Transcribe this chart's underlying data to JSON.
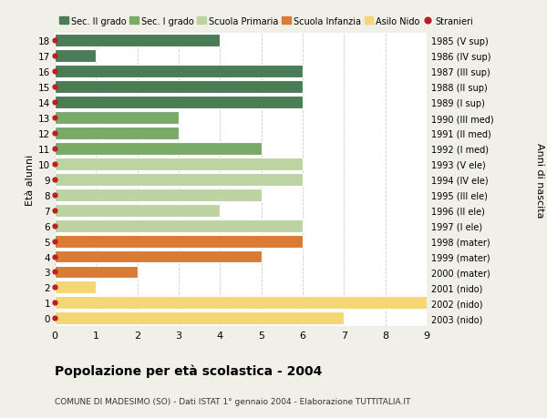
{
  "ages": [
    18,
    17,
    16,
    15,
    14,
    13,
    12,
    11,
    10,
    9,
    8,
    7,
    6,
    5,
    4,
    3,
    2,
    1,
    0
  ],
  "years": [
    "1985 (V sup)",
    "1986 (IV sup)",
    "1987 (III sup)",
    "1988 (II sup)",
    "1989 (I sup)",
    "1990 (III med)",
    "1991 (II med)",
    "1992 (I med)",
    "1993 (V ele)",
    "1994 (IV ele)",
    "1995 (III ele)",
    "1996 (II ele)",
    "1997 (I ele)",
    "1998 (mater)",
    "1999 (mater)",
    "2000 (mater)",
    "2001 (nido)",
    "2002 (nido)",
    "2003 (nido)"
  ],
  "values": [
    4,
    1,
    6,
    6,
    6,
    3,
    3,
    5,
    6,
    6,
    5,
    4,
    6,
    6,
    5,
    2,
    1,
    9,
    7
  ],
  "categories": [
    "Sec. II grado",
    "Sec. II grado",
    "Sec. II grado",
    "Sec. II grado",
    "Sec. II grado",
    "Sec. I grado",
    "Sec. I grado",
    "Sec. I grado",
    "Scuola Primaria",
    "Scuola Primaria",
    "Scuola Primaria",
    "Scuola Primaria",
    "Scuola Primaria",
    "Scuola Infanzia",
    "Scuola Infanzia",
    "Scuola Infanzia",
    "Asilo Nido",
    "Asilo Nido",
    "Asilo Nido"
  ],
  "colors": {
    "Sec. II grado": "#4a7c55",
    "Sec. I grado": "#7aaa68",
    "Scuola Primaria": "#bdd4a2",
    "Scuola Infanzia": "#d97a35",
    "Asilo Nido": "#f5d675"
  },
  "legend_order": [
    "Sec. II grado",
    "Sec. I grado",
    "Scuola Primaria",
    "Scuola Infanzia",
    "Asilo Nido",
    "Stranieri"
  ],
  "stranieri_color": "#bb2020",
  "dot_color": "#bb2020",
  "title": "Popolazione per età scolastica - 2004",
  "subtitle": "COMUNE DI MADESIMO (SO) - Dati ISTAT 1° gennaio 2004 - Elaborazione TUTTITALIA.IT",
  "ylabel_left": "Età alunni",
  "ylabel_right": "Anni di nascita",
  "xlim": [
    0,
    9
  ],
  "ylim": [
    -0.5,
    18.5
  ],
  "background_color": "#f0f0e8",
  "bar_background": "#ffffff",
  "grid_color": "#cccccc"
}
